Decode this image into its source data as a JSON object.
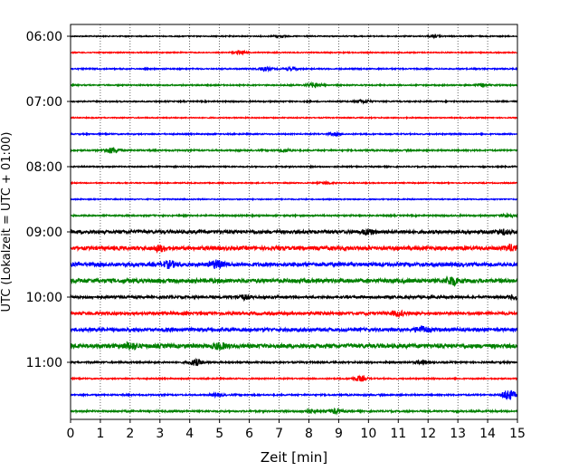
{
  "chart_data": {
    "type": "line",
    "title": "",
    "xlabel": "Zeit  [min]",
    "ylabel": "UTC (Lokalzeit = UTC + 01:00)",
    "xlim": [
      0,
      15
    ],
    "x_ticks": [
      0,
      1,
      2,
      3,
      4,
      5,
      6,
      7,
      8,
      9,
      10,
      11,
      12,
      13,
      14,
      15
    ],
    "y_tick_labels": [
      "06:00",
      "07:00",
      "08:00",
      "09:00",
      "10:00",
      "11:00"
    ],
    "grid": "vertical-dotted",
    "trace_colors": [
      "#000000",
      "#ff0000",
      "#0000ff",
      "#008000"
    ],
    "traces": [
      {
        "start": "06:00",
        "amplitude": 0.25,
        "bursts": [
          {
            "t": 7.0,
            "a": 0.5
          },
          {
            "t": 12.2,
            "a": 0.4
          }
        ]
      },
      {
        "start": "06:15",
        "amplitude": 0.25,
        "bursts": [
          {
            "t": 5.7,
            "a": 0.7
          }
        ]
      },
      {
        "start": "06:30",
        "amplitude": 0.3,
        "bursts": [
          {
            "t": 6.5,
            "a": 0.9
          },
          {
            "t": 7.4,
            "a": 0.6
          }
        ]
      },
      {
        "start": "06:45",
        "amplitude": 0.3,
        "bursts": [
          {
            "t": 8.2,
            "a": 1.2
          },
          {
            "t": 13.8,
            "a": 0.7
          }
        ]
      },
      {
        "start": "07:00",
        "amplitude": 0.3,
        "bursts": [
          {
            "t": 9.8,
            "a": 0.7
          }
        ]
      },
      {
        "start": "07:15",
        "amplitude": 0.25,
        "bursts": []
      },
      {
        "start": "07:30",
        "amplitude": 0.3,
        "bursts": [
          {
            "t": 8.9,
            "a": 0.6
          }
        ]
      },
      {
        "start": "07:45",
        "amplitude": 0.35,
        "bursts": [
          {
            "t": 1.4,
            "a": 1.4
          },
          {
            "t": 7.2,
            "a": 0.7
          }
        ]
      },
      {
        "start": "08:00",
        "amplitude": 0.3,
        "bursts": []
      },
      {
        "start": "08:15",
        "amplitude": 0.25,
        "bursts": [
          {
            "t": 8.6,
            "a": 0.5
          }
        ]
      },
      {
        "start": "08:30",
        "amplitude": 0.25,
        "bursts": []
      },
      {
        "start": "08:45",
        "amplitude": 0.35,
        "bursts": [
          {
            "t": 14.7,
            "a": 0.8
          }
        ]
      },
      {
        "start": "09:00",
        "amplitude": 0.8,
        "bursts": [
          {
            "t": 10.0,
            "a": 1.2
          },
          {
            "t": 14.5,
            "a": 1.0
          }
        ]
      },
      {
        "start": "09:15",
        "amplitude": 0.9,
        "bursts": [
          {
            "t": 3.0,
            "a": 1.2
          },
          {
            "t": 14.8,
            "a": 1.2
          }
        ]
      },
      {
        "start": "09:30",
        "amplitude": 0.9,
        "bursts": [
          {
            "t": 3.3,
            "a": 1.4
          },
          {
            "t": 4.9,
            "a": 1.7
          }
        ]
      },
      {
        "start": "09:45",
        "amplitude": 1.0,
        "bursts": [
          {
            "t": 12.8,
            "a": 1.8
          }
        ]
      },
      {
        "start": "10:00",
        "amplitude": 0.6,
        "bursts": [
          {
            "t": 5.8,
            "a": 1.0
          },
          {
            "t": 14.9,
            "a": 0.9
          }
        ]
      },
      {
        "start": "10:15",
        "amplitude": 0.7,
        "bursts": [
          {
            "t": 11.0,
            "a": 1.0
          }
        ]
      },
      {
        "start": "10:30",
        "amplitude": 0.8,
        "bursts": [
          {
            "t": 11.8,
            "a": 1.4
          }
        ]
      },
      {
        "start": "10:45",
        "amplitude": 1.0,
        "bursts": [
          {
            "t": 2.0,
            "a": 1.3
          },
          {
            "t": 5.0,
            "a": 1.2
          }
        ]
      },
      {
        "start": "11:00",
        "amplitude": 0.4,
        "bursts": [
          {
            "t": 4.2,
            "a": 1.4
          },
          {
            "t": 11.8,
            "a": 0.8
          }
        ]
      },
      {
        "start": "11:15",
        "amplitude": 0.3,
        "bursts": [
          {
            "t": 9.7,
            "a": 1.2
          }
        ]
      },
      {
        "start": "11:30",
        "amplitude": 0.35,
        "bursts": [
          {
            "t": 4.9,
            "a": 0.7
          },
          {
            "t": 14.7,
            "a": 2.5
          }
        ]
      },
      {
        "start": "11:45",
        "amplitude": 0.4,
        "bursts": [
          {
            "t": 8.0,
            "a": 0.9
          },
          {
            "t": 8.9,
            "a": 1.0
          }
        ]
      }
    ]
  }
}
